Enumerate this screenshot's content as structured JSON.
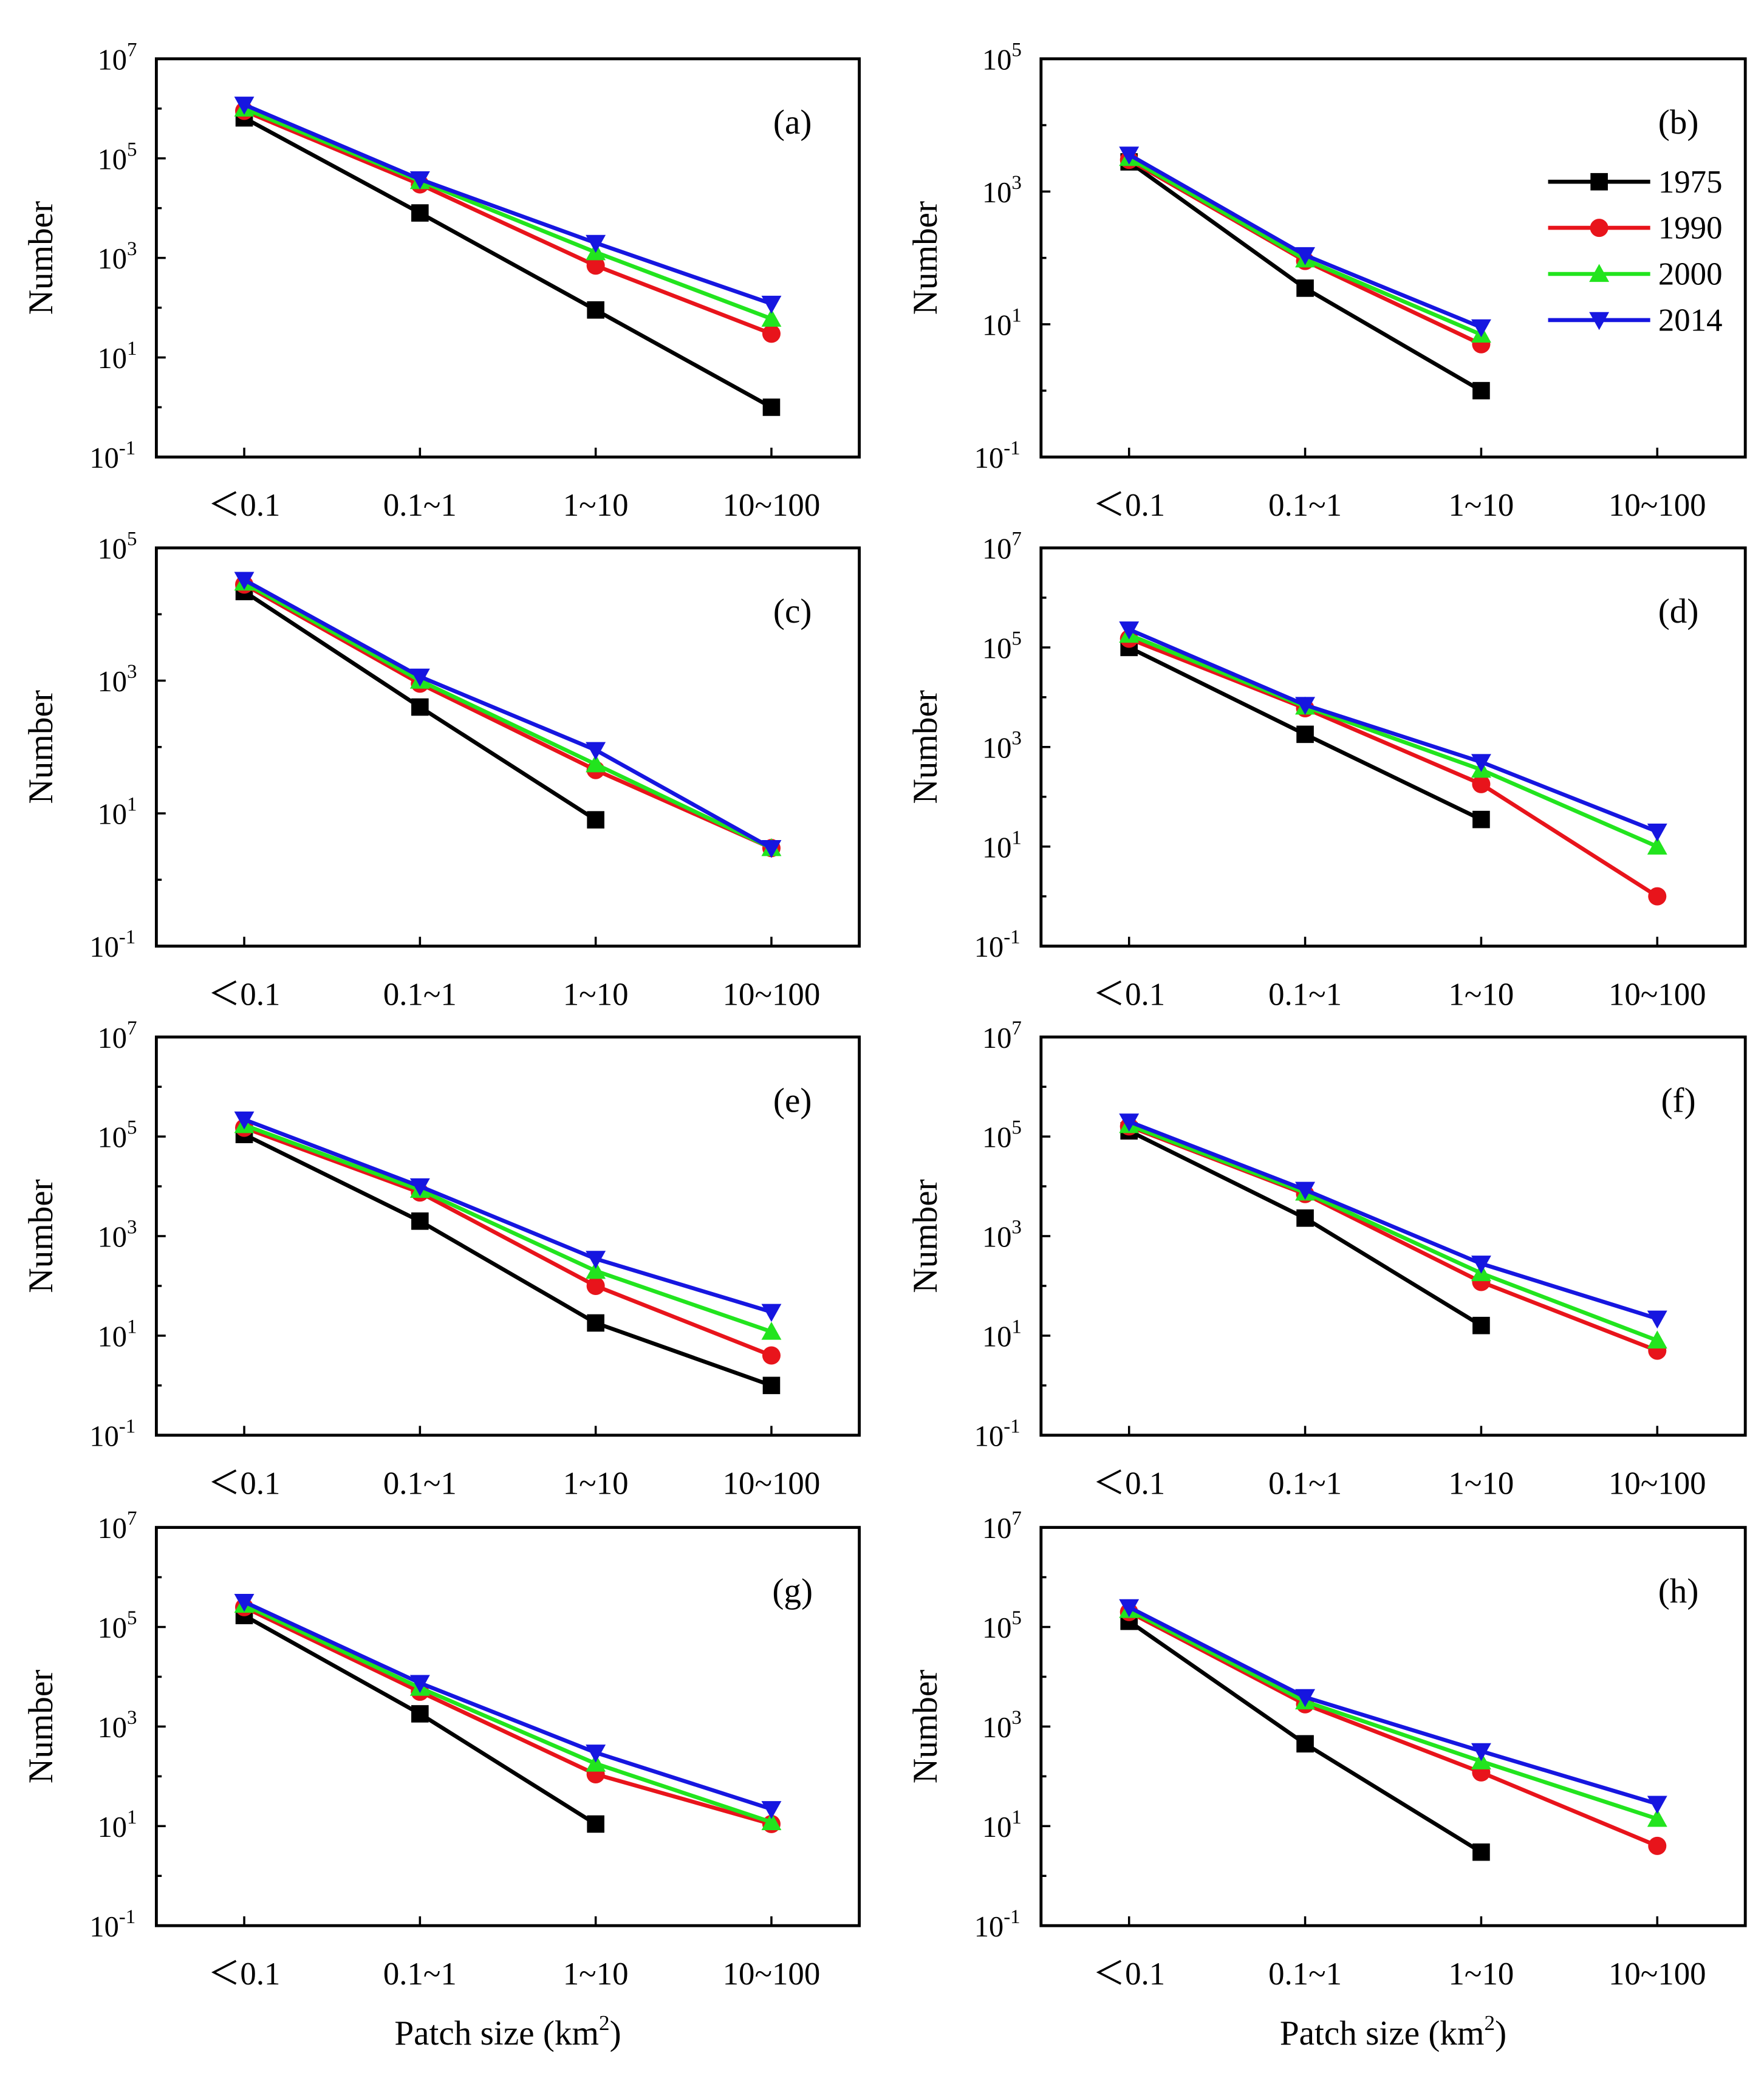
{
  "figure": {
    "categories": [
      "＜0.1",
      "0.1~1",
      "1~10",
      "10~100"
    ],
    "x_label_main": "Patch size (km",
    "x_label_sup": "2",
    "x_label_end": ")",
    "y_label": "Number",
    "series_names": [
      "1975",
      "1990",
      "2000",
      "2014"
    ],
    "series_colors": [
      "#000000",
      "#e8141b",
      "#22e41e",
      "#1616e0"
    ],
    "series_markers": [
      "square",
      "circle",
      "triangle-up",
      "triangle-down"
    ]
  },
  "chart_data": [
    {
      "type": "line",
      "panel": "(a)",
      "title": "(a)",
      "ylabel": "Number",
      "yscale": "log",
      "ylim_exponents": [
        -1,
        7
      ],
      "ytick_exponents": [
        -1,
        1,
        3,
        5,
        7
      ],
      "categories": [
        "＜0.1",
        "0.1~1",
        "1~10",
        "10~100"
      ],
      "series": [
        {
          "name": "1975",
          "values": [
            650000,
            8000,
            90,
            1
          ]
        },
        {
          "name": "1990",
          "values": [
            900000,
            30000,
            700,
            30
          ]
        },
        {
          "name": "2000",
          "values": [
            1000000,
            35000,
            1300,
            60
          ]
        },
        {
          "name": "2014",
          "values": [
            1200000,
            38000,
            2000,
            120
          ]
        }
      ]
    },
    {
      "type": "line",
      "panel": "(b)",
      "title": "(b)",
      "ylabel": "Number",
      "yscale": "log",
      "ylim_exponents": [
        -1,
        5
      ],
      "ytick_exponents": [
        -1,
        1,
        3,
        5
      ],
      "legend": "top-right",
      "categories": [
        "＜0.1",
        "0.1~1",
        "1~10",
        "10~100"
      ],
      "series": [
        {
          "name": "1975",
          "values": [
            2800,
            35,
            1,
            null
          ]
        },
        {
          "name": "1990",
          "values": [
            3000,
            90,
            5,
            null
          ]
        },
        {
          "name": "2000",
          "values": [
            3200,
            95,
            7,
            null
          ]
        },
        {
          "name": "2014",
          "values": [
            3600,
            110,
            9,
            null
          ]
        }
      ]
    },
    {
      "type": "line",
      "panel": "(c)",
      "title": "(c)",
      "ylabel": "Number",
      "yscale": "log",
      "ylim_exponents": [
        -1,
        5
      ],
      "ytick_exponents": [
        -1,
        1,
        3,
        5
      ],
      "categories": [
        "＜0.1",
        "0.1~1",
        "1~10",
        "10~100"
      ],
      "series": [
        {
          "name": "1975",
          "values": [
            22000,
            400,
            8,
            null
          ]
        },
        {
          "name": "1990",
          "values": [
            28000,
            900,
            45,
            3
          ]
        },
        {
          "name": "2000",
          "values": [
            30000,
            1000,
            55,
            3
          ]
        },
        {
          "name": "2014",
          "values": [
            33000,
            1150,
            90,
            3
          ]
        }
      ]
    },
    {
      "type": "line",
      "panel": "(d)",
      "title": "(d)",
      "ylabel": "Number",
      "yscale": "log",
      "ylim_exponents": [
        -1,
        7
      ],
      "ytick_exponents": [
        -1,
        1,
        3,
        5,
        7
      ],
      "categories": [
        "＜0.1",
        "0.1~1",
        "1~10",
        "10~100"
      ],
      "series": [
        {
          "name": "1975",
          "values": [
            100000,
            1800,
            35,
            null
          ]
        },
        {
          "name": "1990",
          "values": [
            150000,
            6000,
            180,
            1
          ]
        },
        {
          "name": "2000",
          "values": [
            180000,
            6500,
            350,
            10
          ]
        },
        {
          "name": "2014",
          "values": [
            230000,
            7000,
            500,
            20
          ]
        }
      ]
    },
    {
      "type": "line",
      "panel": "(e)",
      "title": "(e)",
      "ylabel": "Number",
      "yscale": "log",
      "ylim_exponents": [
        -1,
        7
      ],
      "ytick_exponents": [
        -1,
        1,
        3,
        5,
        7
      ],
      "categories": [
        "＜0.1",
        "0.1~1",
        "1~10",
        "10~100"
      ],
      "series": [
        {
          "name": "1975",
          "values": [
            110000,
            2000,
            18,
            1
          ]
        },
        {
          "name": "1990",
          "values": [
            150000,
            7500,
            100,
            4
          ]
        },
        {
          "name": "2000",
          "values": [
            170000,
            8500,
            200,
            12
          ]
        },
        {
          "name": "2014",
          "values": [
            220000,
            10000,
            350,
            30
          ]
        }
      ]
    },
    {
      "type": "line",
      "panel": "(f)",
      "title": "(f)",
      "ylabel": "Number",
      "yscale": "log",
      "ylim_exponents": [
        -1,
        7
      ],
      "ytick_exponents": [
        -1,
        1,
        3,
        5,
        7
      ],
      "categories": [
        "＜0.1",
        "0.1~1",
        "1~10",
        "10~100"
      ],
      "series": [
        {
          "name": "1975",
          "values": [
            130000,
            2300,
            16,
            null
          ]
        },
        {
          "name": "1990",
          "values": [
            160000,
            7000,
            120,
            5
          ]
        },
        {
          "name": "2000",
          "values": [
            170000,
            7500,
            180,
            8
          ]
        },
        {
          "name": "2014",
          "values": [
            200000,
            8500,
            280,
            22
          ]
        }
      ]
    },
    {
      "type": "line",
      "panel": "(g)",
      "title": "(g)",
      "ylabel": "Number",
      "yscale": "log",
      "ylim_exponents": [
        -1,
        7
      ],
      "ytick_exponents": [
        -1,
        1,
        3,
        5,
        7
      ],
      "categories": [
        "＜0.1",
        "0.1~1",
        "1~10",
        "10~100"
      ],
      "series": [
        {
          "name": "1975",
          "values": [
            170000,
            1800,
            11,
            null
          ]
        },
        {
          "name": "1990",
          "values": [
            250000,
            5000,
            110,
            11
          ]
        },
        {
          "name": "2000",
          "values": [
            280000,
            6000,
            180,
            12
          ]
        },
        {
          "name": "2014",
          "values": [
            320000,
            7500,
            300,
            22
          ]
        }
      ]
    },
    {
      "type": "line",
      "panel": "(h)",
      "title": "(h)",
      "ylabel": "Number",
      "yscale": "log",
      "ylim_exponents": [
        -1,
        7
      ],
      "ytick_exponents": [
        -1,
        1,
        3,
        5,
        7
      ],
      "categories": [
        "＜0.1",
        "0.1~1",
        "1~10",
        "10~100"
      ],
      "series": [
        {
          "name": "1975",
          "values": [
            130000,
            450,
            3,
            null
          ]
        },
        {
          "name": "1990",
          "values": [
            200000,
            2800,
            120,
            4
          ]
        },
        {
          "name": "2000",
          "values": [
            220000,
            3200,
            200,
            14
          ]
        },
        {
          "name": "2014",
          "values": [
            250000,
            3900,
            320,
            28
          ]
        }
      ]
    }
  ]
}
